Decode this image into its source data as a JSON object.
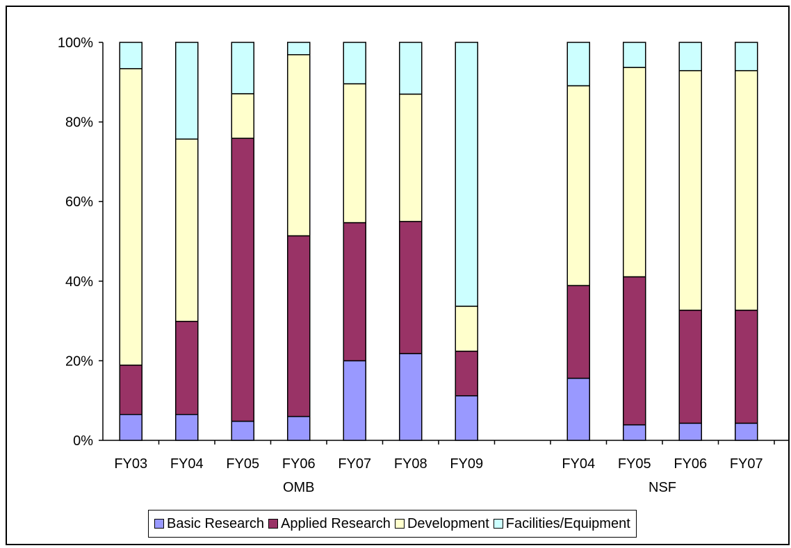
{
  "chart_data": {
    "type": "bar",
    "stacked": true,
    "y_axis": {
      "min": 0,
      "max": 100,
      "ticks": [
        "0%",
        "20%",
        "40%",
        "60%",
        "80%",
        "100%"
      ]
    },
    "groups": [
      {
        "label": "OMB",
        "categories": [
          "FY03",
          "FY04",
          "FY05",
          "FY06",
          "FY07",
          "FY08",
          "FY09"
        ]
      },
      {
        "label": "NSF",
        "categories": [
          "FY04",
          "FY05",
          "FY06",
          "FY07"
        ]
      }
    ],
    "series": [
      {
        "name": "Basic Research",
        "color": "#9999ff",
        "values": [
          6.5,
          6.5,
          4.8,
          6.0,
          20.0,
          21.8,
          11.2,
          15.6,
          3.9,
          4.3,
          4.3
        ]
      },
      {
        "name": "Applied Research",
        "color": "#993366",
        "values": [
          12.4,
          23.4,
          71.1,
          45.4,
          34.7,
          33.2,
          11.2,
          23.3,
          37.2,
          28.4,
          28.4
        ]
      },
      {
        "name": "Development",
        "color": "#ffffcc",
        "values": [
          74.5,
          45.8,
          11.2,
          45.5,
          34.9,
          32.0,
          11.3,
          50.2,
          52.6,
          60.2,
          60.2
        ]
      },
      {
        "name": "Facilities/Equipment",
        "color": "#ccffff",
        "values": [
          6.6,
          24.3,
          12.9,
          3.1,
          10.4,
          13.0,
          66.3,
          10.9,
          6.3,
          7.1,
          7.1
        ]
      }
    ],
    "legend_position": "bottom",
    "grid": false
  }
}
